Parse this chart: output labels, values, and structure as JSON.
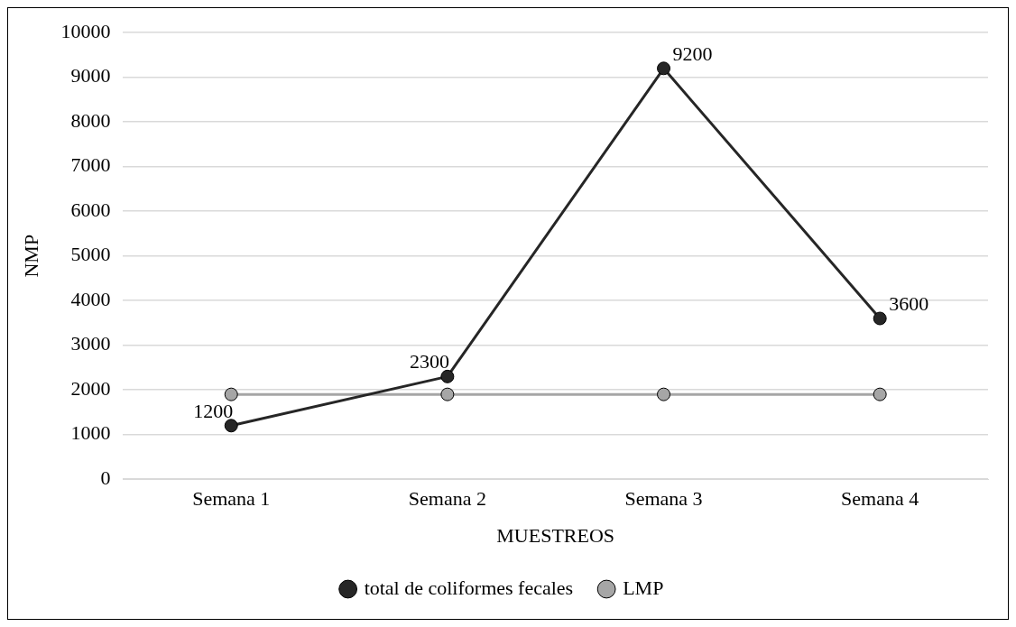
{
  "chart_data": {
    "type": "line",
    "xlabel": "MUESTREOS",
    "ylabel": "NMP",
    "categories": [
      "Semana 1",
      "Semana 2",
      "Semana 3",
      "Semana 4"
    ],
    "series": [
      {
        "name": "total de coliformes fecales",
        "color": "#262626",
        "values": [
          1200,
          2300,
          9200,
          3600
        ],
        "value_labels": [
          "1200",
          "2300",
          "9200",
          "3600"
        ]
      },
      {
        "name": "LMP",
        "color": "#a6a6a6",
        "values": [
          1900,
          1900,
          1900,
          1900
        ]
      }
    ],
    "ylim": [
      0,
      10000
    ],
    "yticks": [
      0,
      1000,
      2000,
      3000,
      4000,
      5000,
      6000,
      7000,
      8000,
      9000,
      10000
    ],
    "grid": "y",
    "legend": "bottom",
    "marker": "circle",
    "line_style": "solid"
  }
}
